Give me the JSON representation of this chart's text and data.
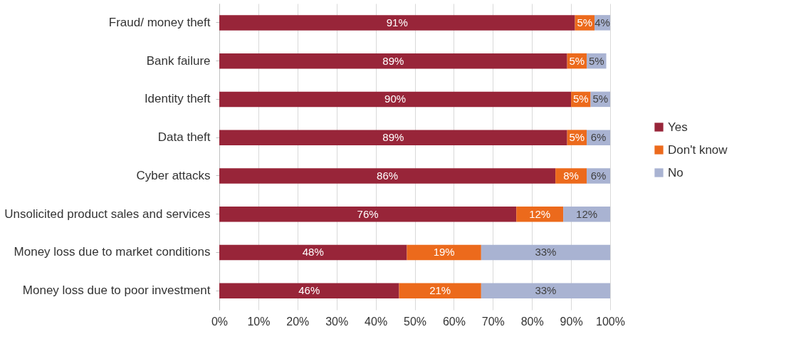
{
  "chart_data": {
    "type": "bar",
    "orientation": "horizontal",
    "stacked": true,
    "data_labels": true,
    "grid": "x",
    "legend": "right",
    "categories": [
      "Fraud/ money theft",
      "Bank failure",
      "Identity theft",
      "Data theft",
      "Cyber attacks",
      "Unsolicited product sales and services",
      "Money loss due to market conditions",
      "Money loss due to poor investment"
    ],
    "series": [
      {
        "name": "Yes",
        "color": "#982539",
        "values": [
          91,
          89,
          90,
          89,
          86,
          76,
          48,
          46
        ],
        "value_labels": [
          "91%",
          "89%",
          "90%",
          "89%",
          "86%",
          "76%",
          "48%",
          "46%"
        ]
      },
      {
        "name": "Don't know",
        "color": "#ec6a1c",
        "values": [
          5,
          5,
          5,
          5,
          8,
          12,
          19,
          21
        ],
        "value_labels": [
          "5%",
          "5%",
          "5%",
          "5%",
          "8%",
          "12%",
          "19%",
          "21%"
        ]
      },
      {
        "name": "No",
        "color": "#a9b3d2",
        "values": [
          4,
          5,
          5,
          6,
          6,
          12,
          33,
          33
        ],
        "value_labels": [
          "4%",
          "5%",
          "5%",
          "6%",
          "6%",
          "12%",
          "33%",
          "33%"
        ]
      }
    ],
    "xlim": [
      0,
      100
    ],
    "xticks": [
      {
        "value": 0,
        "label": "0%"
      },
      {
        "value": 10,
        "label": "10%"
      },
      {
        "value": 20,
        "label": "20%"
      },
      {
        "value": 30,
        "label": "30%"
      },
      {
        "value": 40,
        "label": "40%"
      },
      {
        "value": 50,
        "label": "50%"
      },
      {
        "value": 60,
        "label": "60%"
      },
      {
        "value": 70,
        "label": "70%"
      },
      {
        "value": 80,
        "label": "80%"
      },
      {
        "value": 90,
        "label": "90%"
      },
      {
        "value": 100,
        "label": "100%"
      }
    ]
  }
}
